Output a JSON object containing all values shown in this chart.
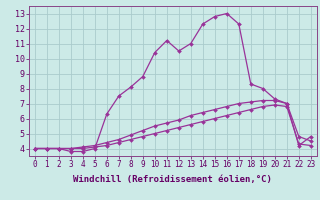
{
  "xlabel": "Windchill (Refroidissement éolien,°C)",
  "background_color": "#cceae7",
  "grid_color": "#aacccc",
  "line_color": "#993399",
  "x_ticks": [
    0,
    1,
    2,
    3,
    4,
    5,
    6,
    7,
    8,
    9,
    10,
    11,
    12,
    13,
    14,
    15,
    16,
    17,
    18,
    19,
    20,
    21,
    22,
    23
  ],
  "ylim": [
    3.5,
    13.5
  ],
  "xlim": [
    -0.5,
    23.5
  ],
  "yticks": [
    4,
    5,
    6,
    7,
    8,
    9,
    10,
    11,
    12,
    13
  ],
  "line1_x": [
    0,
    1,
    2,
    3,
    4,
    5,
    6,
    7,
    8,
    9,
    10,
    11,
    12,
    13,
    14,
    15,
    16,
    17,
    18,
    19,
    20,
    21,
    22,
    23
  ],
  "line1_y": [
    4.0,
    4.0,
    4.0,
    4.0,
    4.1,
    4.2,
    4.4,
    4.6,
    4.9,
    5.2,
    5.5,
    5.7,
    5.9,
    6.2,
    6.4,
    6.6,
    6.8,
    7.0,
    7.1,
    7.2,
    7.2,
    7.0,
    4.8,
    4.5
  ],
  "line2_x": [
    0,
    1,
    2,
    3,
    4,
    5,
    6,
    7,
    8,
    9,
    10,
    11,
    12,
    13,
    14,
    15,
    16,
    17,
    18,
    19,
    20,
    21,
    22,
    23
  ],
  "line2_y": [
    4.0,
    4.0,
    4.0,
    4.0,
    4.0,
    4.1,
    4.2,
    4.4,
    4.6,
    4.8,
    5.0,
    5.2,
    5.4,
    5.6,
    5.8,
    6.0,
    6.2,
    6.4,
    6.6,
    6.8,
    6.9,
    6.8,
    4.3,
    4.2
  ],
  "line3_x": [
    0,
    1,
    2,
    3,
    4,
    5,
    6,
    7,
    8,
    9,
    10,
    11,
    12,
    13,
    14,
    15,
    16,
    17,
    18,
    19,
    20,
    21,
    22,
    23
  ],
  "line3_y": [
    4.0,
    4.0,
    4.0,
    3.8,
    3.8,
    4.0,
    6.3,
    7.5,
    8.1,
    8.8,
    10.4,
    11.2,
    10.5,
    11.0,
    12.3,
    12.8,
    13.0,
    12.3,
    8.3,
    8.0,
    7.3,
    7.0,
    4.2,
    4.8
  ],
  "xlabel_fontsize": 6.5,
  "tick_fontsize": 5.5,
  "xlabel_color": "#660066",
  "tick_color": "#660066"
}
